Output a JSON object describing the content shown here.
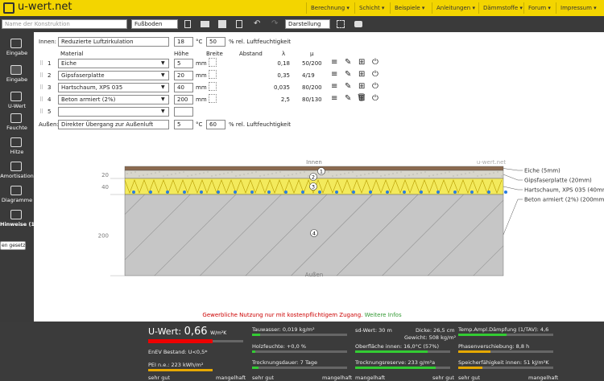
{
  "header": {
    "logo": "u-wert.net",
    "menu": [
      "Berechnung",
      "Schicht",
      "Beispiele",
      "Anleitungen",
      "Dämmstoffe",
      "Forum",
      "Impressum"
    ]
  },
  "toolbar": {
    "name_placeholder": "Name der Konstruktion",
    "type": "Fußboden",
    "view": "Darstellung"
  },
  "sidebar": {
    "items": [
      "Eingabe",
      "Eingabe",
      "U-Wert",
      "Feuchte",
      "Hitze",
      "Amortisation",
      "Diagramme",
      "Hinweise (1)"
    ],
    "button": "en gesetzt"
  },
  "form": {
    "innen_label": "Innen:",
    "innen_name": "Reduzierte Luftzirkulation",
    "innen_temp": "18",
    "innen_rh": "50",
    "temp_unit": "°C",
    "rh_unit": "% rel. Luftfeuchtigkeit",
    "columns": [
      "Material",
      "Höhe",
      "Breite",
      "Abstand",
      "λ",
      "μ"
    ],
    "unit": "mm",
    "layers": [
      {
        "nr": "1",
        "material": "Eiche",
        "hoehe": "5",
        "lambda": "0,18",
        "mu": "50/200"
      },
      {
        "nr": "2",
        "material": "Gipsfaserplatte",
        "hoehe": "20",
        "lambda": "0,35",
        "mu": "4/19"
      },
      {
        "nr": "3",
        "material": "Hartschaum, XPS 035",
        "hoehe": "40",
        "lambda": "0,035",
        "mu": "80/200"
      },
      {
        "nr": "4",
        "material": "Beton armiert (2%)",
        "hoehe": "200",
        "lambda": "2,5",
        "mu": "80/130"
      },
      {
        "nr": "5"
      }
    ],
    "aussen_label": "Außen:",
    "aussen_name": "Direkter Übergang zur Außenluft",
    "aussen_temp": "5",
    "aussen_rh": "60"
  },
  "diagram": {
    "top": "Innen",
    "bottom": "Außen",
    "watermark": "u-wert.net",
    "scale": [
      "20",
      "40",
      "200"
    ],
    "layers": [
      "Eiche (5mm)",
      "Gipsfaserplatte (20mm)",
      "Hartschaum, XPS 035 (40mm)",
      "Beton armiert (2%) (200mm)"
    ],
    "numbers": [
      "1",
      "2",
      "3",
      "4"
    ]
  },
  "notice": {
    "text": "Gewerbliche Nutzung nur mit kostenpflichtigem Zugang.",
    "link": "Weitere Infos"
  },
  "results": {
    "uwert_label": "U-Wert:",
    "uwert_value": "0,66",
    "uwert_unit": "W/m²K",
    "enev": "EnEV Bestand: U<0,5*",
    "pei": "PEI n.e.: 223 kWh/m²",
    "good": "sehr gut",
    "bad": "mangelhaft",
    "col2": [
      "Tauwasser: 0,019 kg/m²",
      "Holzfeuchte: +0,0 %",
      "Trocknungsdauer: 7 Tage"
    ],
    "sd": "sd-Wert: 30 m",
    "dicke": "Dicke: 26,5 cm",
    "gewicht": "Gewicht: 508 kg/m²",
    "col3": [
      "Oberfläche innen: 16,0°C (57%)",
      "Trocknungsreserve: 233 g/m²a"
    ],
    "col4": [
      "Temp.Ampl.Dämpfung (1/TAV): 4,6",
      "Phasenverschiebung: 8,8 h",
      "Speicherfähigkeit innen: 51 kJ/m²K"
    ]
  }
}
